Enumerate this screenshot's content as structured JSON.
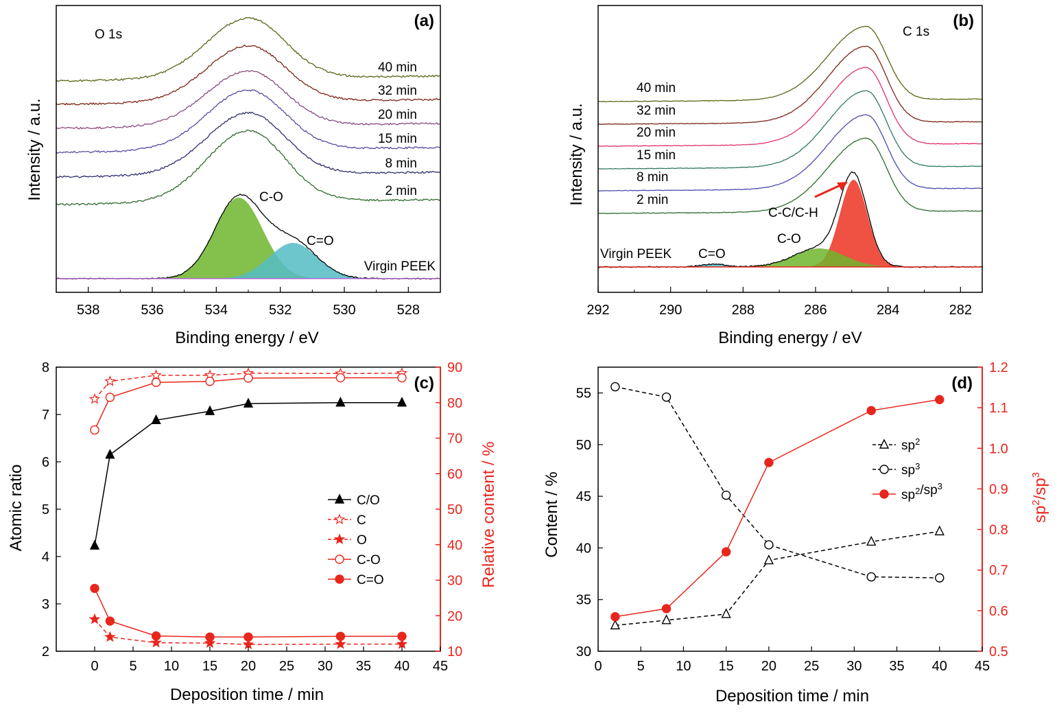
{
  "colors": {
    "red": "#e8261c",
    "black": "#000000",
    "green_fill": "#6fb52d",
    "cyan_fill": "#55bcc4",
    "red_fill": "#ec3322"
  },
  "chart_data": [
    {
      "id": "a",
      "type": "line",
      "panel_label": "(a)",
      "spectrum_label": "O 1s",
      "xlabel": "Binding energy / eV",
      "ylabel": "Intensity / a.u.",
      "xlim": [
        539,
        527
      ],
      "x_reversed": true,
      "xticks": [
        538,
        536,
        534,
        532,
        530,
        528
      ],
      "peak_center_eV": 533.0,
      "series": [
        {
          "name": "40 min",
          "color": "#5a6414",
          "baseline": 118,
          "peak": 88
        },
        {
          "name": "32 min",
          "color": "#7a2414",
          "baseline": 152,
          "peak": 82
        },
        {
          "name": "20 min",
          "color": "#8c4a7e",
          "baseline": 187,
          "peak": 80
        },
        {
          "name": "15 min",
          "color": "#5a4aa4",
          "baseline": 222,
          "peak": 87
        },
        {
          "name": "8 min",
          "color": "#2e2e6e",
          "baseline": 258,
          "peak": 90
        },
        {
          "name": "2 min",
          "color": "#2e6a2e",
          "baseline": 298,
          "peak": 104
        }
      ],
      "reference": {
        "name": "Virgin PEEK",
        "components": [
          {
            "name": "C-O",
            "center_eV": 533.3,
            "height": 118,
            "fill": "#6fb52d"
          },
          {
            "name": "C=O",
            "center_eV": 531.6,
            "height": 52,
            "fill": "#55bcc4"
          }
        ]
      }
    },
    {
      "id": "b",
      "type": "line",
      "panel_label": "(b)",
      "spectrum_label": "C 1s",
      "xlabel": "Binding energy / eV",
      "ylabel": "Intensity / a.u.",
      "xlim": [
        292,
        281.4
      ],
      "x_reversed": true,
      "xticks": [
        292,
        290,
        288,
        286,
        284,
        282
      ],
      "peak_center_eV": 284.6,
      "series": [
        {
          "name": "40 min",
          "color": "#5a6414",
          "baseline": 148,
          "peak": 107
        },
        {
          "name": "32 min",
          "color": "#7a2414",
          "baseline": 181,
          "peak": 111
        },
        {
          "name": "20 min",
          "color": "#e0306a",
          "baseline": 213,
          "peak": 112
        },
        {
          "name": "15 min",
          "color": "#2e7a5a",
          "baseline": 246,
          "peak": 111
        },
        {
          "name": "8 min",
          "color": "#4a4ab0",
          "baseline": 278,
          "peak": 108
        },
        {
          "name": "2 min",
          "color": "#2e6a2e",
          "baseline": 311,
          "peak": 107
        }
      ],
      "reference": {
        "name": "Virgin PEEK",
        "components": [
          {
            "name": "C-C/C-H",
            "center_eV": 284.95,
            "height": 127,
            "fill": "#ec3322"
          },
          {
            "name": "C-O",
            "center_eV": 285.9,
            "height": 27,
            "fill": "#6fb52d"
          },
          {
            "name": "C=O",
            "center_eV": 288.8,
            "height": 4,
            "fill": "#55bcc4"
          }
        ]
      }
    },
    {
      "id": "c",
      "type": "line",
      "panel_label": "(c)",
      "xlabel": "Deposition time / min",
      "ylabel": "Atomic ratio",
      "y2label": "Relative content / %",
      "xlim": [
        -5,
        45
      ],
      "xticks": [
        0,
        5,
        10,
        15,
        20,
        25,
        30,
        35,
        40,
        45
      ],
      "ylim": [
        2,
        8
      ],
      "yticks": [
        2,
        3,
        4,
        5,
        6,
        7,
        8
      ],
      "y2lim": [
        10,
        90
      ],
      "y2ticks": [
        10,
        20,
        30,
        40,
        50,
        60,
        70,
        80,
        90
      ],
      "series": [
        {
          "name": "C/O",
          "axis": "left",
          "marker": "triangle-filled",
          "color": "#000000",
          "dash": false,
          "x": [
            0,
            2,
            8,
            15,
            20,
            32,
            40
          ],
          "y": [
            4.23,
            6.15,
            6.88,
            7.07,
            7.23,
            7.25,
            7.25
          ]
        },
        {
          "name": "C",
          "axis": "right",
          "marker": "star-open",
          "color": "#e8261c",
          "dash": true,
          "x": [
            0,
            2,
            8,
            15,
            20,
            32,
            40
          ],
          "y": [
            81.0,
            86.0,
            87.7,
            87.7,
            88.3,
            88.2,
            88.3
          ]
        },
        {
          "name": "O",
          "axis": "right",
          "marker": "star-filled",
          "color": "#e8261c",
          "dash": true,
          "x": [
            0,
            2,
            8,
            15,
            20,
            32,
            40
          ],
          "y": [
            19.0,
            14.0,
            12.4,
            12.3,
            11.9,
            12.0,
            12.0
          ]
        },
        {
          "name": "C-O",
          "axis": "right",
          "marker": "circle-open",
          "color": "#e8261c",
          "dash": false,
          "x": [
            0,
            2,
            8,
            15,
            20,
            32,
            40
          ],
          "y": [
            72.3,
            81.5,
            85.7,
            86.0,
            86.9,
            87.0,
            87.0
          ]
        },
        {
          "name": "C=O",
          "axis": "right",
          "marker": "circle-filled",
          "color": "#e8261c",
          "dash": false,
          "x": [
            0,
            2,
            8,
            15,
            20,
            32,
            40
          ],
          "y": [
            27.7,
            18.5,
            14.3,
            14.0,
            14.0,
            14.2,
            14.2
          ]
        }
      ]
    },
    {
      "id": "d",
      "type": "line",
      "panel_label": "(d)",
      "xlabel": "Deposition time / min",
      "ylabel": "Content / %",
      "y2label": "sp²/sp³",
      "xlim": [
        0,
        45
      ],
      "xticks": [
        0,
        5,
        10,
        15,
        20,
        25,
        30,
        35,
        40,
        45
      ],
      "ylim": [
        30,
        57.5
      ],
      "yticks": [
        30,
        35,
        40,
        45,
        50,
        55
      ],
      "y2lim": [
        0.5,
        1.2
      ],
      "y2ticks": [
        "0.5",
        "0.6",
        "0.7",
        "0.8",
        "0.9",
        "1.0",
        "1.1",
        "1.2"
      ],
      "series": [
        {
          "name": "sp2",
          "axis": "left",
          "marker": "triangle-open",
          "color": "#000000",
          "dash": true,
          "x": [
            2,
            8,
            15,
            20,
            32,
            40
          ],
          "y": [
            32.5,
            33.0,
            33.6,
            38.8,
            40.6,
            41.6
          ]
        },
        {
          "name": "sp3",
          "axis": "left",
          "marker": "circle-open",
          "color": "#000000",
          "dash": true,
          "x": [
            2,
            8,
            15,
            20,
            32,
            40
          ],
          "y": [
            55.6,
            54.6,
            45.1,
            40.3,
            37.2,
            37.1
          ]
        },
        {
          "name": "sp2/sp3",
          "axis": "right",
          "marker": "circle-filled",
          "color": "#e8261c",
          "dash": false,
          "x": [
            2,
            8,
            15,
            20,
            32,
            40
          ],
          "y": [
            0.585,
            0.605,
            0.745,
            0.965,
            1.093,
            1.12
          ]
        }
      ]
    }
  ]
}
